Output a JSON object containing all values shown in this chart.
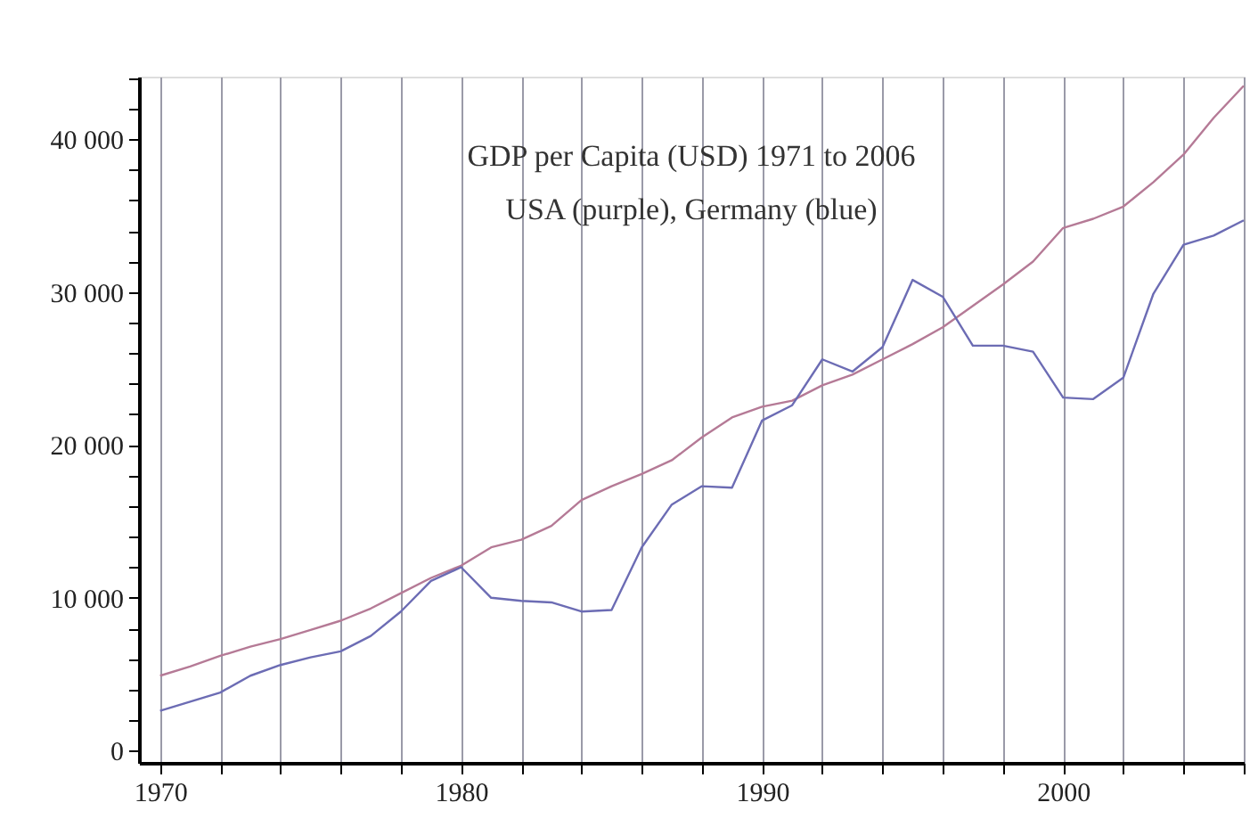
{
  "chart_data": {
    "type": "line",
    "title": "GDP per Capita (USD) 1971 to 2006",
    "subtitle": "USA (purple), Germany (blue)",
    "x": [
      1970,
      1971,
      1972,
      1973,
      1974,
      1975,
      1976,
      1977,
      1978,
      1979,
      1980,
      1981,
      1982,
      1983,
      1984,
      1985,
      1986,
      1987,
      1988,
      1989,
      1990,
      1991,
      1992,
      1993,
      1994,
      1995,
      1996,
      1997,
      1998,
      1999,
      2000,
      2001,
      2002,
      2003,
      2004,
      2005,
      2006
    ],
    "series": [
      {
        "color": "#b57a96",
        "values": [
          4900,
          5500,
          6200,
          6800,
          7300,
          7900,
          8500,
          9300,
          10300,
          11300,
          12100,
          13300,
          13800,
          14700,
          16400,
          17300,
          18100,
          19000,
          20500,
          21800,
          22500,
          22900,
          23900,
          24600,
          25600,
          26600,
          27700,
          29100,
          30500,
          32000,
          34200,
          34800,
          35600,
          37200,
          39000,
          41400,
          43500
        ]
      },
      {
        "color": "#6c6cb4",
        "values": [
          2600,
          3200,
          3800,
          4900,
          5600,
          6100,
          6500,
          7500,
          9100,
          11100,
          12000,
          10000,
          9800,
          9700,
          9100,
          9200,
          13300,
          16100,
          17300,
          17200,
          21600,
          22600,
          25600,
          24800,
          26400,
          30800,
          29700,
          26500,
          26500,
          26100,
          23100,
          23000,
          24400,
          29900,
          33100,
          33700,
          34700
        ]
      }
    ],
    "xlim": [
      1969.3,
      2006
    ],
    "ylim": [
      -800,
      44100
    ],
    "xticks": [
      1970,
      {
        "value": 1972,
        "label": null
      },
      {
        "value": 1974,
        "label": null
      },
      {
        "value": 1976,
        "label": null
      },
      {
        "value": 1978,
        "label": null
      },
      1980,
      {
        "value": 1982,
        "label": null
      },
      {
        "value": 1984,
        "label": null
      },
      {
        "value": 1986,
        "label": null
      },
      {
        "value": 1988,
        "label": null
      },
      1990,
      {
        "value": 1992,
        "label": null
      },
      {
        "value": 1994,
        "label": null
      },
      {
        "value": 1996,
        "label": null
      },
      {
        "value": 1998,
        "label": null
      },
      2000,
      {
        "value": 2002,
        "label": null
      },
      {
        "value": 2004,
        "label": null
      },
      {
        "value": 2006,
        "label": null
      }
    ],
    "yticks": [
      0,
      {
        "value": 2000,
        "label": null
      },
      {
        "value": 4000,
        "label": null
      },
      {
        "value": 6000,
        "label": null
      },
      {
        "value": 8000,
        "label": null
      },
      {
        "value": 10000,
        "label": "10 000"
      },
      {
        "value": 12000,
        "label": null
      },
      {
        "value": 14000,
        "label": null
      },
      {
        "value": 16000,
        "label": null
      },
      {
        "value": 18000,
        "label": null
      },
      {
        "value": 20000,
        "label": "20 000"
      },
      {
        "value": 22000,
        "label": null
      },
      {
        "value": 24000,
        "label": null
      },
      {
        "value": 26000,
        "label": null
      },
      {
        "value": 28000,
        "label": null
      },
      {
        "value": 30000,
        "label": "30 000"
      },
      {
        "value": 32000,
        "label": null
      },
      {
        "value": 34000,
        "label": null
      },
      {
        "value": 36000,
        "label": null
      },
      {
        "value": 38000,
        "label": null
      },
      {
        "value": 40000,
        "label": "40 000"
      },
      {
        "value": 42000,
        "label": null
      },
      {
        "value": 44000,
        "label": null
      }
    ],
    "grid": "x",
    "legend": false,
    "marker": "none",
    "line_style": "solid"
  }
}
